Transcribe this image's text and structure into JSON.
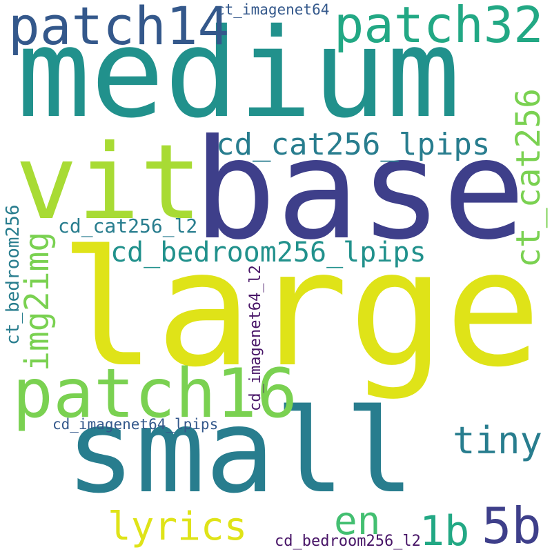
{
  "cloud": {
    "colors": {
      "dark_purple": "#481567",
      "indigo": "#3e3f8a",
      "slate_blue": "#34588b",
      "teal_blue": "#287d8e",
      "teal": "#21918c",
      "green_teal": "#22a884",
      "green": "#43bf71",
      "light_green": "#7ad151",
      "lime": "#a8db34",
      "yellow": "#dfe318"
    },
    "words": {
      "medium": "medium",
      "base": "base",
      "large": "large",
      "small": "small",
      "vit": "vit",
      "patch14": "patch14",
      "patch32": "patch32",
      "patch16": "patch16",
      "cd_cat256_lpips": "cd_cat256_lpips",
      "cd_bedroom256_lpips": "cd_bedroom256_lpips",
      "cd_cat256_l2": "cd_cat256_l2",
      "ct_cat256": "ct_cat256",
      "img2img": "img2img",
      "ct_bedroom256": "ct_bedroom256",
      "ct_imagenet64": "ct_imagenet64",
      "cd_imagenet64_l2": "cd_imagenet64_l2",
      "cd_imagenet64_lpips": "cd_imagenet64_lpips",
      "cd_bedroom256_l2": "cd_bedroom256_l2",
      "tiny": "tiny",
      "lyrics": "lyrics",
      "en": "en",
      "1b": "1b",
      "5b": "5b"
    }
  }
}
